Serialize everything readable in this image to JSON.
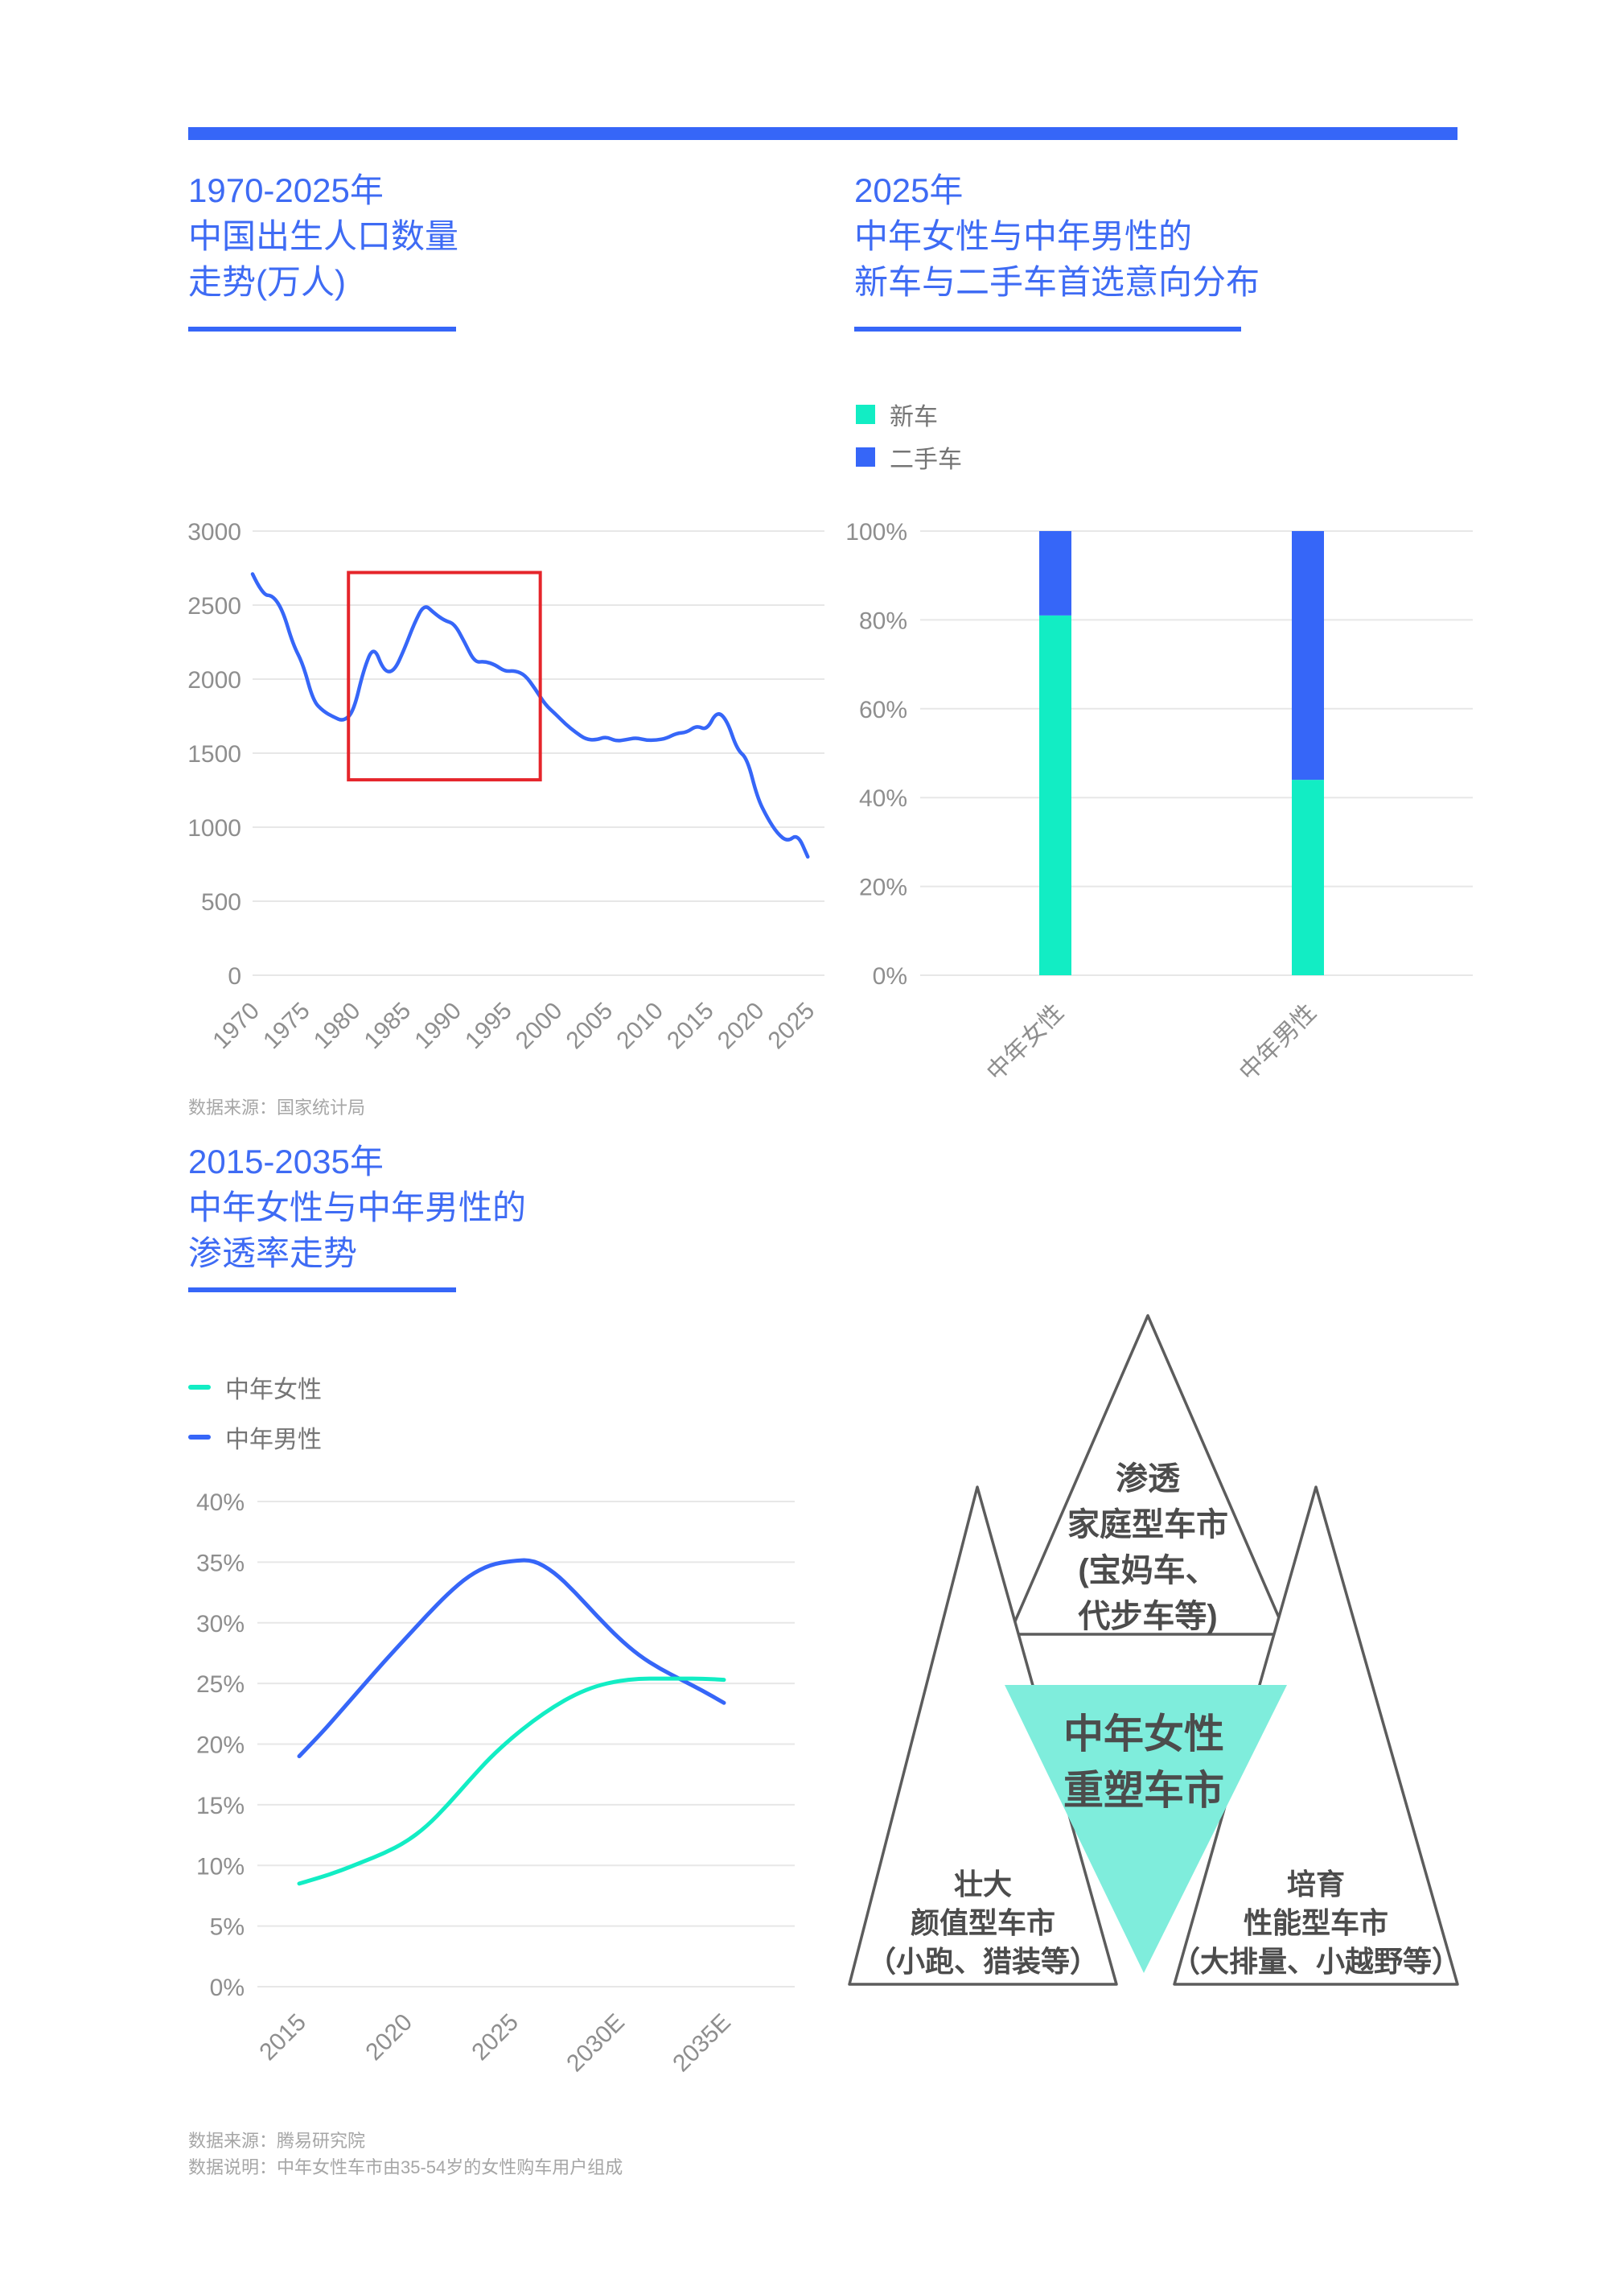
{
  "page": {
    "background": "#FFFFFF",
    "accent_blue": "#3666F8",
    "title_blue": "#3E6BF4",
    "teal": "#12EDC4",
    "diagram_teal": "#7FEDDC",
    "diagram_outline": "#5C5C5C",
    "red": "#E5252B",
    "grid_color": "#E7E7E7",
    "axis_text_color": "#8E8E8E"
  },
  "sections": {
    "birth": {
      "title_lines": [
        "1970-2025年",
        "中国出生人口数量",
        "走势(万人)"
      ],
      "source_note": "数据来源：国家统计局"
    },
    "intent": {
      "title_lines": [
        "2025年",
        "中年女性与中年男性的",
        "新车与二手车首选意向分布"
      ]
    },
    "penetration": {
      "title_lines": [
        "2015-2035年",
        "中年女性与中年男性的",
        "渗透率走势"
      ]
    }
  },
  "footnotes": [
    "数据来源：腾易研究院",
    "数据说明：中年女性车市由35-54岁的女性购车用户组成"
  ],
  "diagram": {
    "top_lines": [
      "渗透",
      "家庭型车市",
      "(宝妈车、",
      "代步车等)"
    ],
    "center_lines": [
      "中年女性",
      "重塑车市"
    ],
    "left_lines": [
      "壮大",
      "颜值型车市",
      "（小跑、猎装等）"
    ],
    "right_lines": [
      "培育",
      "性能型车市",
      "（大排量、小越野等）"
    ]
  },
  "chart_data": [
    {
      "id": "birth",
      "type": "line",
      "title": "1970-2025年中国出生人口数量走势(万人)",
      "x": [
        1970,
        1971,
        1972,
        1973,
        1974,
        1975,
        1976,
        1977,
        1978,
        1979,
        1980,
        1981,
        1982,
        1983,
        1984,
        1985,
        1986,
        1987,
        1988,
        1989,
        1990,
        1991,
        1992,
        1993,
        1994,
        1995,
        1996,
        1997,
        1998,
        1999,
        2000,
        2001,
        2002,
        2003,
        2004,
        2005,
        2006,
        2007,
        2008,
        2009,
        2010,
        2011,
        2012,
        2013,
        2014,
        2015,
        2016,
        2017,
        2018,
        2019,
        2020,
        2021,
        2022,
        2023,
        2024,
        2025
      ],
      "series": [
        {
          "name": "出生人口",
          "color": "#3666F8",
          "values": [
            2710,
            2567,
            2566,
            2463,
            2235,
            2102,
            1853,
            1783,
            1745,
            1715,
            1779,
            2064,
            2230,
            2052,
            2050,
            2196,
            2374,
            2508,
            2445,
            2396,
            2374,
            2250,
            2113,
            2120,
            2098,
            2052,
            2057,
            2028,
            1934,
            1827,
            1765,
            1696,
            1641,
            1594,
            1588,
            1612,
            1581,
            1591,
            1604,
            1587,
            1588,
            1600,
            1635,
            1640,
            1687,
            1655,
            1786,
            1723,
            1523,
            1465,
            1200,
            1062,
            956,
            902,
            954,
            800
          ]
        }
      ],
      "ylim": [
        0,
        3000
      ],
      "ytick_step": 500,
      "y_suffix": "",
      "xtick_pos": [
        1970,
        1975,
        1980,
        1985,
        1990,
        1995,
        2000,
        2005,
        2010,
        2015,
        2020,
        2025
      ],
      "xtick_labels": [
        "1970",
        "1975",
        "1980",
        "1985",
        "1990",
        "1995",
        "2000",
        "2005",
        "2010",
        "2015",
        "2020",
        "2025"
      ],
      "grid": true,
      "line_width": 4.5,
      "annotation_box": {
        "x0": 1979.5,
        "x1": 1998.5,
        "y0": 1320,
        "y1": 2720,
        "color": "#E5252B"
      }
    },
    {
      "id": "intent",
      "type": "stacked_bar",
      "title": "2025年中年女性与中年男性的新车与二手车首选意向分布",
      "categories": [
        "中年女性",
        "中年男性"
      ],
      "series": [
        {
          "name": "新车",
          "color": "#12EDC4",
          "values": [
            81,
            44
          ]
        },
        {
          "name": "二手车",
          "color": "#3666F8",
          "values": [
            19,
            56
          ]
        }
      ],
      "ylim": [
        0,
        100
      ],
      "ytick_step": 20,
      "y_suffix": "%",
      "grid": true,
      "legend_position": "top"
    },
    {
      "id": "penetration",
      "type": "line",
      "title": "2015-2035年中年女性与中年男性的渗透率走势",
      "x": [
        2015,
        2016,
        2017,
        2018,
        2019,
        2020,
        2021,
        2022,
        2023,
        2024,
        2025,
        2026,
        2027,
        2028,
        2029,
        2030,
        2031,
        2032,
        2033,
        2034,
        2035
      ],
      "series": [
        {
          "name": "中年女性",
          "color": "#12EDC4",
          "values": [
            8.5,
            9.0,
            9.6,
            10.3,
            11.0,
            11.9,
            13.2,
            15.0,
            17.0,
            18.9,
            20.5,
            21.9,
            23.1,
            24.1,
            24.8,
            25.2,
            25.4,
            25.4,
            25.4,
            25.4,
            25.3
          ]
        },
        {
          "name": "中年男性",
          "color": "#3666F8",
          "values": [
            19.0,
            20.8,
            22.8,
            24.8,
            26.8,
            28.7,
            30.6,
            32.4,
            33.9,
            34.8,
            35.1,
            35.2,
            34.2,
            32.5,
            30.6,
            28.8,
            27.3,
            26.2,
            25.3,
            24.4,
            23.4
          ]
        }
      ],
      "ylim": [
        0,
        40
      ],
      "ytick_step": 5,
      "y_suffix": "%",
      "xtick_pos": [
        2015,
        2020,
        2025,
        2030,
        2035
      ],
      "xtick_labels": [
        "2015",
        "2020",
        "2025",
        "2030E",
        "2035E"
      ],
      "grid": true,
      "line_width": 5,
      "legend_position": "top"
    }
  ]
}
